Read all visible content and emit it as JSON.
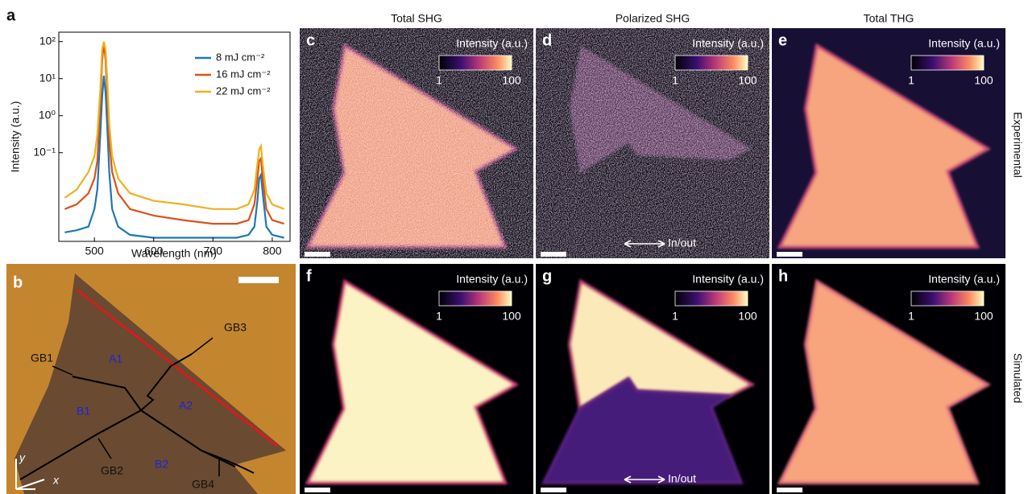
{
  "chart_data": {
    "type": "line",
    "panel_label": "a",
    "y_label": "Intensity (a.u.)",
    "x_label": "Wavelength (nm)",
    "log_y": true,
    "xlim": [
      440,
      830
    ],
    "ylim": [
      0.0004,
      180
    ],
    "xticks": [
      500,
      600,
      700,
      800
    ],
    "yticks": [
      {
        "value": 0.1,
        "label": "10⁻¹"
      },
      {
        "value": 1,
        "label": "10⁰"
      },
      {
        "value": 10,
        "label": "10¹"
      },
      {
        "value": 100,
        "label": "10²"
      }
    ],
    "legend": "upper right",
    "x": [
      450,
      470,
      490,
      500,
      505,
      510,
      513,
      516,
      519,
      522,
      525,
      530,
      540,
      560,
      600,
      650,
      700,
      740,
      760,
      770,
      775,
      778,
      781,
      784,
      790,
      800,
      820
    ],
    "series": [
      {
        "name": "8 mJ cm⁻²",
        "color": "#1f77b4",
        "values": [
          0.0007,
          0.0008,
          0.001,
          0.003,
          0.01,
          0.3,
          3,
          12,
          4,
          0.4,
          0.03,
          0.003,
          0.001,
          0.0006,
          0.0005,
          0.0005,
          0.0005,
          0.0005,
          0.0006,
          0.001,
          0.005,
          0.02,
          0.025,
          0.008,
          0.001,
          0.0006,
          0.0005
        ]
      },
      {
        "name": "16 mJ cm⁻²",
        "color": "#d95319",
        "values": [
          0.003,
          0.004,
          0.008,
          0.02,
          0.06,
          2,
          30,
          90,
          30,
          3,
          0.2,
          0.03,
          0.008,
          0.003,
          0.002,
          0.0015,
          0.0012,
          0.0012,
          0.0015,
          0.004,
          0.02,
          0.06,
          0.07,
          0.02,
          0.003,
          0.0015,
          0.0012
        ]
      },
      {
        "name": "22 mJ cm⁻²",
        "color": "#edb120",
        "values": [
          0.006,
          0.01,
          0.03,
          0.08,
          0.3,
          5,
          60,
          100,
          60,
          8,
          0.6,
          0.08,
          0.02,
          0.008,
          0.005,
          0.004,
          0.003,
          0.003,
          0.004,
          0.01,
          0.05,
          0.12,
          0.15,
          0.05,
          0.008,
          0.004,
          0.003
        ]
      }
    ]
  },
  "column_headers": [
    "Total SHG",
    "Polarized SHG",
    "Total THG"
  ],
  "row_labels": [
    "Experimental",
    "Simulated"
  ],
  "panel_b": {
    "letter": "b",
    "grain_boundaries": [
      "GB1",
      "GB2",
      "GB3",
      "GB4"
    ],
    "regions": [
      "A1",
      "B1",
      "A2",
      "B2"
    ],
    "axes": [
      "y",
      "x"
    ]
  },
  "image_panels": [
    {
      "letter": "c",
      "colorbar_label": "Intensity (a.u.)",
      "colorbar_ticks": [
        1,
        100
      ]
    },
    {
      "letter": "d",
      "colorbar_label": "Intensity (a.u.)",
      "colorbar_ticks": [
        1,
        100
      ],
      "annotation": "In/out"
    },
    {
      "letter": "e",
      "colorbar_label": "Intensity (a.u.)",
      "colorbar_ticks": [
        1,
        100
      ]
    },
    {
      "letter": "f",
      "colorbar_label": "Intensity (a.u.)",
      "colorbar_ticks": [
        1,
        100
      ]
    },
    {
      "letter": "g",
      "colorbar_label": "Intensity (a.u.)",
      "colorbar_ticks": [
        1,
        100
      ],
      "annotation": "In/out"
    },
    {
      "letter": "h",
      "colorbar_label": "Intensity (a.u.)",
      "colorbar_ticks": [
        1,
        100
      ]
    }
  ]
}
